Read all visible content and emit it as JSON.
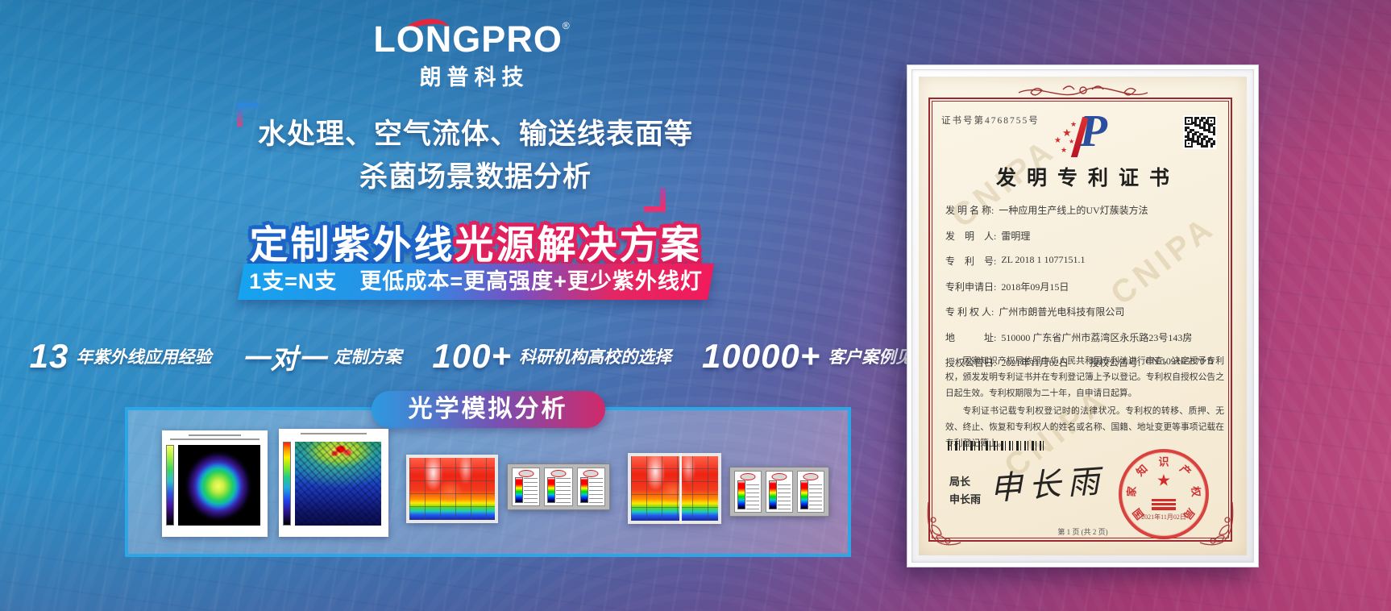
{
  "logo": {
    "brand": "LONGPRO",
    "reg": "®",
    "subbrand": "朗普科技"
  },
  "headline": {
    "line1": "水处理、空气流体、输送线表面等",
    "line2": "杀菌场景数据分析"
  },
  "solution": {
    "title_left": "定制紫外线",
    "title_right": "光源解决方案",
    "subtitle": "1支=N支　更低成本=更高强度+更少紫外线灯"
  },
  "stats": [
    {
      "value": "13",
      "label": "年紫外线应用经验"
    },
    {
      "value": "一对一",
      "label": "定制方案"
    },
    {
      "value": "100+",
      "label": "科研机构高校的选择"
    },
    {
      "value": "10000+",
      "label": "客户案例见证"
    }
  ],
  "simulation": {
    "badge": "光学模拟分析",
    "images": [
      "optical-contour-map",
      "irradiance-scatter-map",
      "uv-surface-heatmap-a",
      "intensity-legend-panel-a",
      "uv-surface-heatmap-b",
      "intensity-legend-panel-b"
    ]
  },
  "certificate": {
    "number": "证书号第4768755号",
    "title": "发明专利证书",
    "watermark": "CNIPA",
    "fields": [
      {
        "label": "发 明 名 称:",
        "value": "一种应用生产线上的UV灯蔟装方法"
      },
      {
        "label": "发　明　人:",
        "value": "雷明理"
      },
      {
        "label": "专　利　号:",
        "value": "ZL 2018 1 1077151.1"
      },
      {
        "label": "专利申请日:",
        "value": "2018年09月15日"
      },
      {
        "label": "专 利 权 人:",
        "value": "广州市朗普光电科技有限公司"
      },
      {
        "label": "地　　　址:",
        "value": "510000 广东省广州市荔湾区永乐路23号143房"
      },
      {
        "label": "授权公告日:",
        "value": "2021年11月02日"
      },
      {
        "label": "授权公告号:",
        "value": "CN 109165870 B"
      }
    ],
    "paragraph1": "国家知识产权局依照中华人民共和国专利法进行审查，决定授予专利权，颁发发明专利证书并在专利登记簿上予以登记。专利权自授权公告之日起生效。专利权期限为二十年，自申请日起算。",
    "paragraph2": "专利证书记载专利权登记时的法律状况。专利权的转移、质押、无效、终止、恢复和专利权人的姓名或名称、国籍、地址变更等事项记载在专利登记簿上。",
    "director_label": "局长",
    "director_name": "申长雨",
    "signature": "申长雨",
    "seal_text": "国家知识产权局",
    "seal_date": "2021年11月02日",
    "page_note": "第 1 页 (共 2 页)"
  },
  "colors": {
    "accent_blue": "#16a3ef",
    "accent_pink": "#f11b5c",
    "panel_border": "#2ba6e6",
    "logo_swoosh_red": "#e6253f",
    "cert_border_red": "#9c2730",
    "seal_red": "#d42b2b"
  }
}
